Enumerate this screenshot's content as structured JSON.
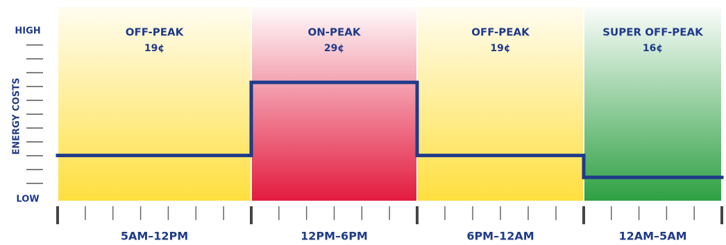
{
  "chart_data": {
    "type": "step",
    "y_label": "ENERGY COSTS",
    "categories": [
      "5AM–12PM",
      "12PM–6PM",
      "6PM–12AM",
      "12AM–5AM"
    ],
    "periods": [
      "OFF-PEAK",
      "ON-PEAK",
      "OFF-PEAK",
      "SUPER OFF-PEAK"
    ],
    "values": [
      19,
      29,
      19,
      16
    ],
    "value_labels": [
      "19¢",
      "29¢",
      "19¢",
      "16¢"
    ],
    "band_colors": [
      "#ffdf3f",
      "#e31b3f",
      "#ffdf3f",
      "#2ea043"
    ],
    "line_color": "#1f3a8a",
    "ylim": [
      13,
      36
    ],
    "yticks": [
      {
        "value": 13,
        "label": "LOW"
      },
      {
        "value": 36,
        "label": "HIGH"
      }
    ]
  }
}
